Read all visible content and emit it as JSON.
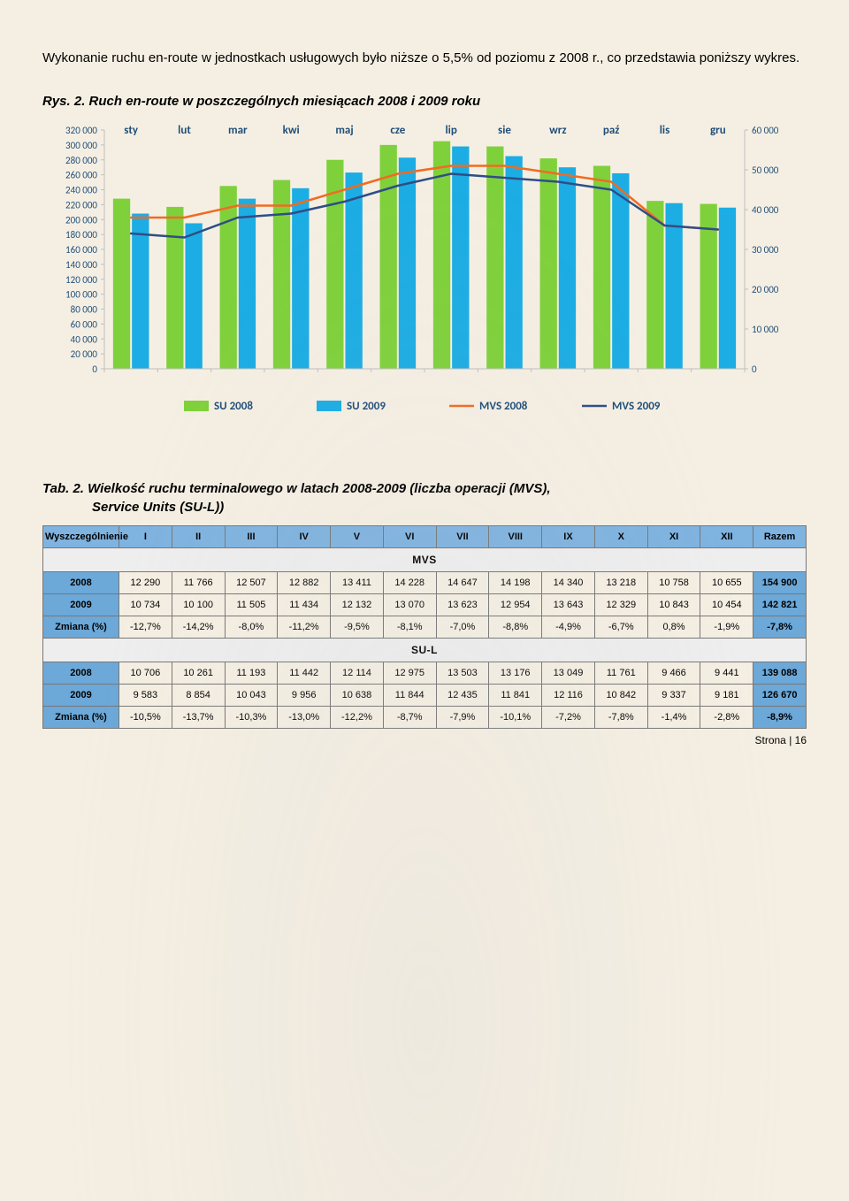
{
  "intro": "Wykonanie ruchu en-route w jednostkach usługowych było niższe o 5,5% od poziomu z 2008 r., co przedstawia poniższy wykres.",
  "fig_title": "Rys. 2. Ruch en-route w poszczególnych miesiącach 2008 i 2009 roku",
  "tab_title_a": "Tab. 2. Wielkość ruchu terminalowego w latach 2008-2009 (liczba operacji (MVS),",
  "tab_title_b": "Service Units (SU-L))",
  "page_num": "Strona | 16",
  "chart": {
    "categories": [
      "sty",
      "lut",
      "mar",
      "kwi",
      "maj",
      "cze",
      "lip",
      "sie",
      "wrz",
      "paź",
      "lis",
      "gru"
    ],
    "y_left_ticks": [
      0,
      20000,
      40000,
      60000,
      80000,
      100000,
      120000,
      140000,
      160000,
      180000,
      200000,
      220000,
      240000,
      260000,
      280000,
      300000,
      320000
    ],
    "y_right_ticks": [
      0,
      10000,
      20000,
      30000,
      40000,
      50000,
      60000
    ],
    "y_left_labels": [
      "0",
      "20 000",
      "40 000",
      "60 000",
      "80 000",
      "100 000",
      "120 000",
      "140 000",
      "160 000",
      "180 000",
      "200 000",
      "220 000",
      "240 000",
      "260 000",
      "280 000",
      "300 000",
      "320 000"
    ],
    "y_right_labels": [
      "0",
      "10 000",
      "20 000",
      "30 000",
      "40 000",
      "50 000",
      "60 000"
    ],
    "su2008": [
      228000,
      217000,
      245000,
      253000,
      280000,
      300000,
      305000,
      298000,
      282000,
      272000,
      225000,
      221000
    ],
    "su2009": [
      208000,
      195000,
      228000,
      242000,
      263000,
      283000,
      298000,
      285000,
      270000,
      262000,
      222000,
      216000
    ],
    "mvs2008": [
      38000,
      38000,
      41000,
      41000,
      45000,
      49000,
      51000,
      51000,
      49000,
      47000,
      36000,
      35000
    ],
    "mvs2009": [
      34000,
      33000,
      38000,
      39000,
      42000,
      46000,
      49000,
      48000,
      47000,
      45000,
      36000,
      35000
    ],
    "colors": {
      "su2008": "#7fd13b",
      "su2009": "#1cade4",
      "mvs2008": "#f26b21",
      "mvs2009": "#2e4e87",
      "grid": "#bfbfbf",
      "axis_text": "#1f4e79",
      "cat_text": "#1f4e79"
    },
    "legend": {
      "su2008": "SU 2008",
      "su2009": "SU 2009",
      "mvs2008": "MVS 2008",
      "mvs2009": "MVS 2009"
    }
  },
  "table": {
    "head_label": "Wyszczególnienie",
    "cols": [
      "I",
      "II",
      "III",
      "IV",
      "V",
      "VI",
      "VII",
      "VIII",
      "IX",
      "X",
      "XI",
      "XII",
      "Razem"
    ],
    "sections": [
      {
        "name": "MVS",
        "rows": [
          {
            "label": "2008",
            "cls": "r2008",
            "cells": [
              "12 290",
              "11 766",
              "12 507",
              "12 882",
              "13 411",
              "14 228",
              "14 647",
              "14 198",
              "14 340",
              "13 218",
              "10 758",
              "10 655",
              "154 900"
            ]
          },
          {
            "label": "2009",
            "cls": "r2009",
            "cells": [
              "10 734",
              "10 100",
              "11 505",
              "11 434",
              "12 132",
              "13 070",
              "13 623",
              "12 954",
              "13 643",
              "12 329",
              "10 843",
              "10 454",
              "142 821"
            ]
          },
          {
            "label": "Zmiana (%)",
            "cls": "rchange",
            "cells": [
              "-12,7%",
              "-14,2%",
              "-8,0%",
              "-11,2%",
              "-9,5%",
              "-8,1%",
              "-7,0%",
              "-8,8%",
              "-4,9%",
              "-6,7%",
              "0,8%",
              "-1,9%",
              "-7,8%"
            ]
          }
        ]
      },
      {
        "name": "SU-L",
        "rows": [
          {
            "label": "2008",
            "cls": "r2008",
            "cells": [
              "10 706",
              "10 261",
              "11 193",
              "11 442",
              "12 114",
              "12 975",
              "13 503",
              "13 176",
              "13 049",
              "11 761",
              "9 466",
              "9 441",
              "139 088"
            ]
          },
          {
            "label": "2009",
            "cls": "r2009",
            "cells": [
              "9 583",
              "8 854",
              "10 043",
              "9 956",
              "10 638",
              "11 844",
              "12 435",
              "11 841",
              "12 116",
              "10 842",
              "9 337",
              "9 181",
              "126 670"
            ]
          },
          {
            "label": "Zmiana (%)",
            "cls": "rchange",
            "cells": [
              "-10,5%",
              "-13,7%",
              "-10,3%",
              "-13,0%",
              "-12,2%",
              "-8,7%",
              "-7,9%",
              "-10,1%",
              "-7,2%",
              "-7,8%",
              "-1,4%",
              "-2,8%",
              "-8,9%"
            ]
          }
        ]
      }
    ]
  }
}
